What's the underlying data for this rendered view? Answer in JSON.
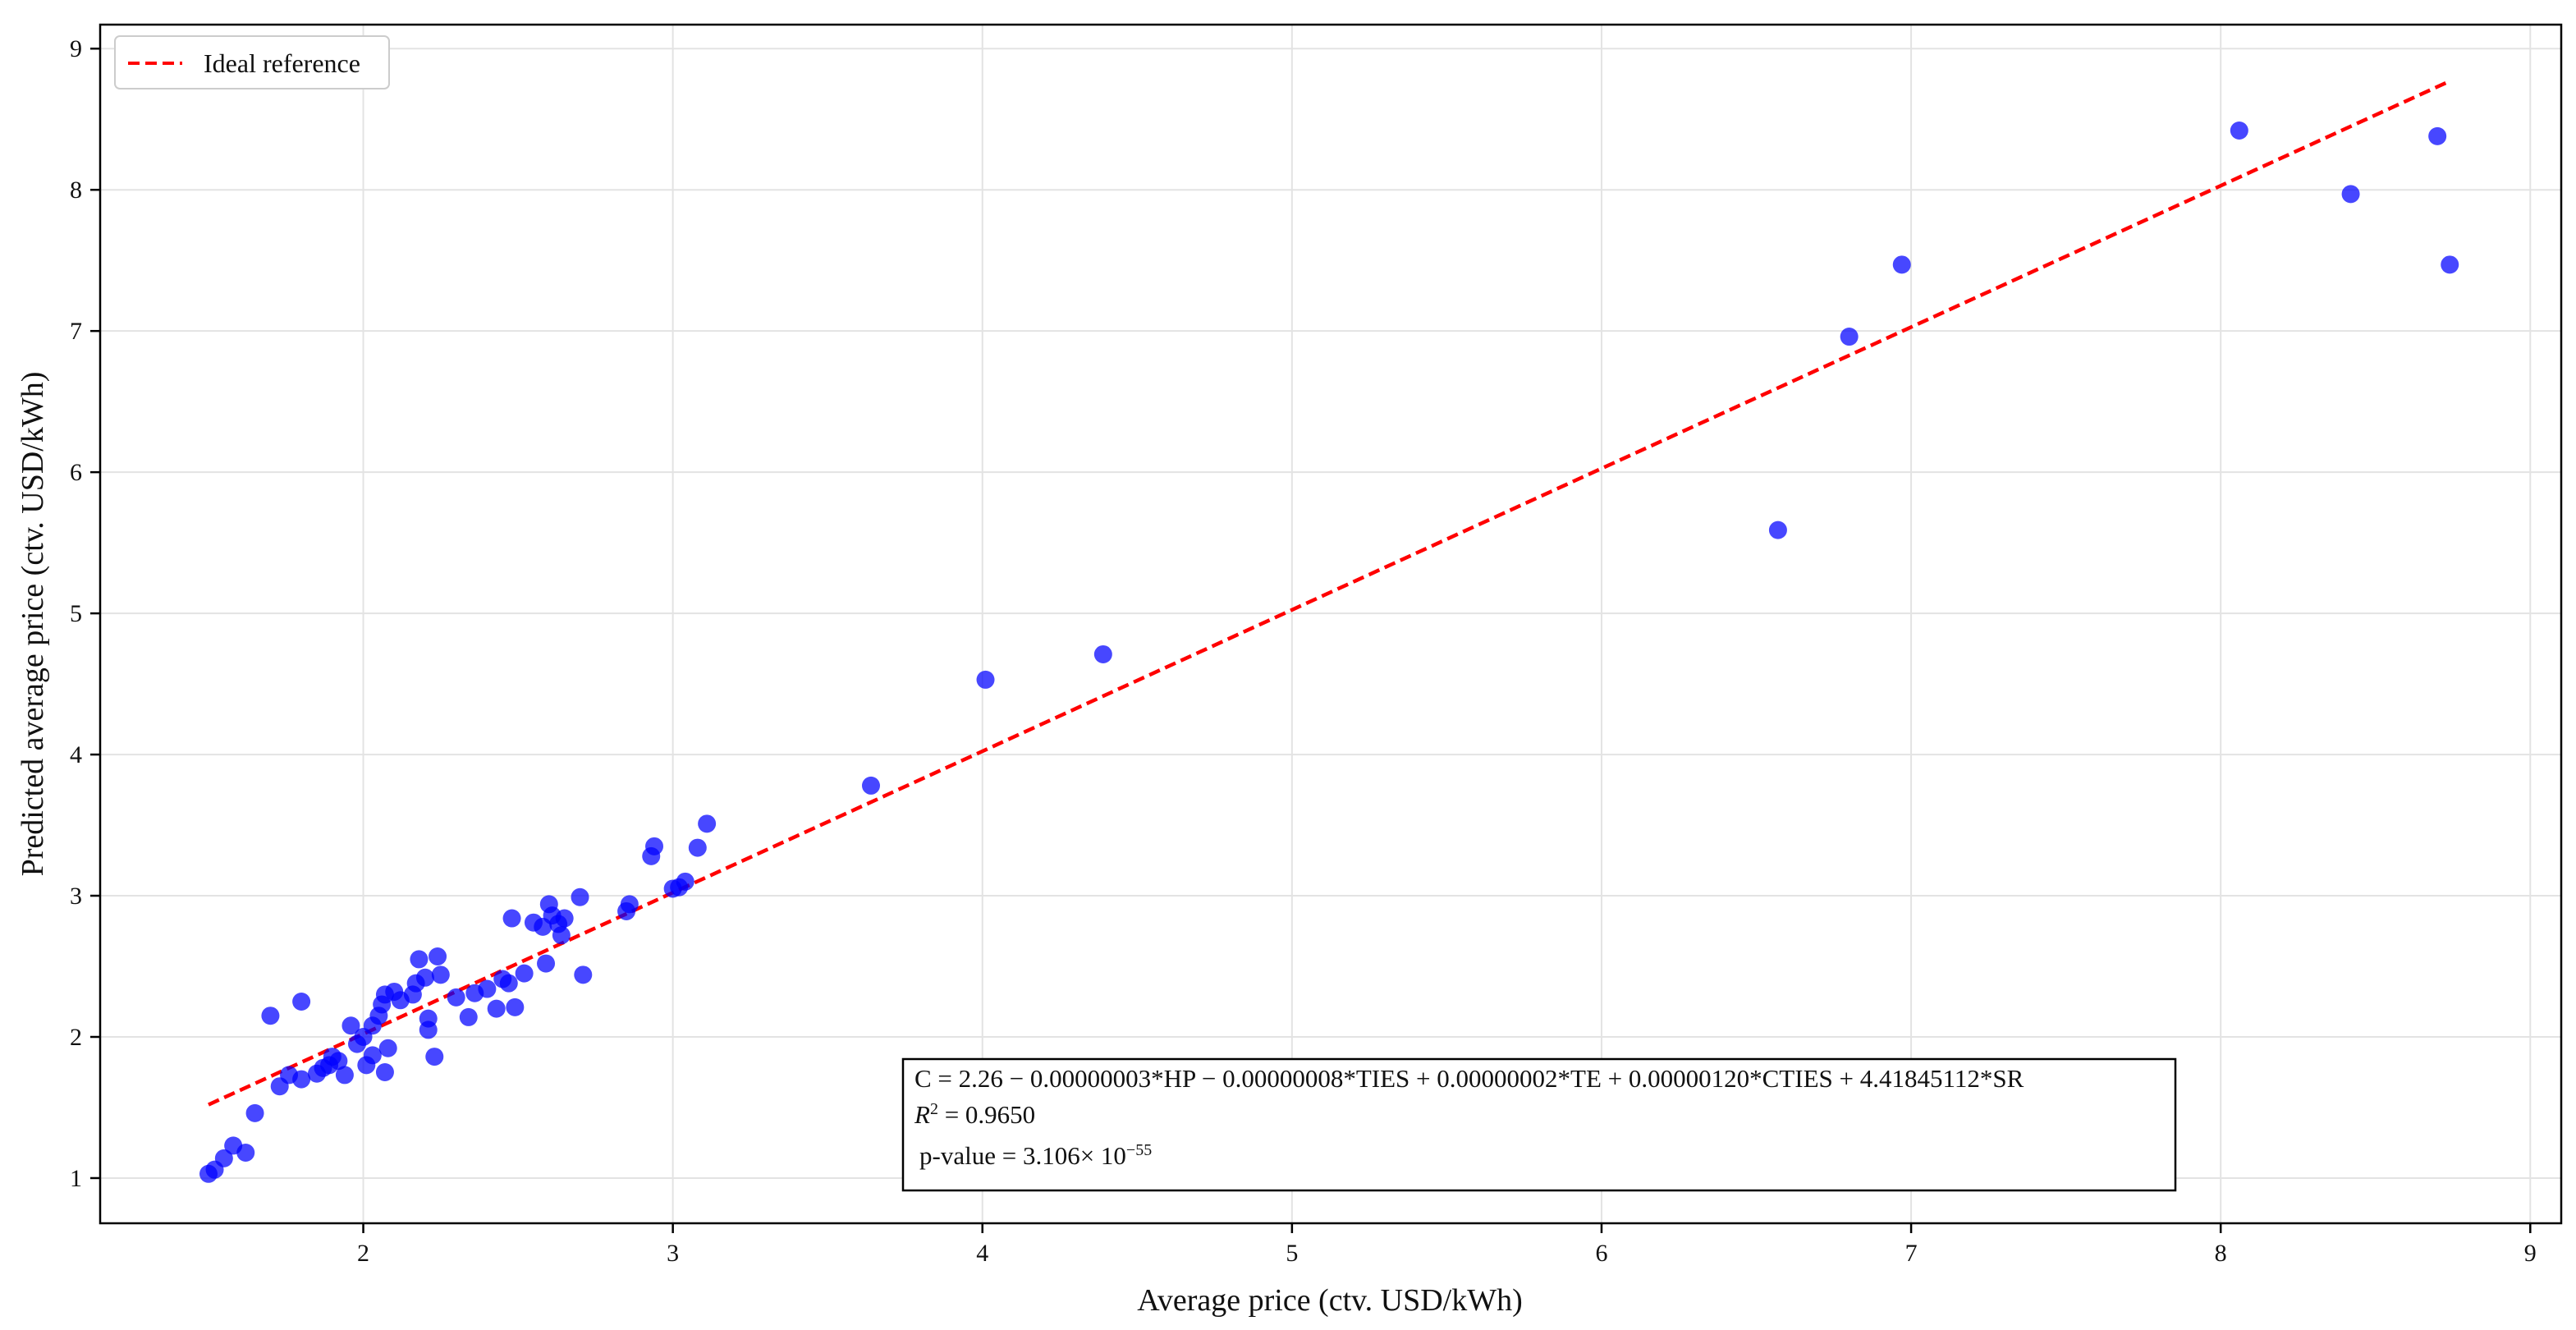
{
  "chart_data": {
    "type": "scatter",
    "title": "",
    "xlabel": "Average price (ctv. USD/kWh)",
    "ylabel": "Predicted average price (ctv. USD/kWh)",
    "xlim": [
      1.15,
      9.1
    ],
    "ylim": [
      0.68,
      9.17
    ],
    "xticks": [
      2,
      3,
      4,
      5,
      6,
      7,
      8,
      9
    ],
    "yticks": [
      1,
      2,
      3,
      4,
      5,
      6,
      7,
      8,
      9
    ],
    "grid": true,
    "legend_position": "top-left",
    "colors": {
      "points": "#0000ff",
      "reference": "#ff0000"
    },
    "reference_line": {
      "name": "Ideal reference",
      "x": [
        1.5,
        8.73
      ],
      "y": [
        1.52,
        8.76
      ]
    },
    "annotation": {
      "equation": "C = 2.26 − 0.00000003*HP − 0.00000008*TIES + 0.00000002*TE + 0.00000120*CTIES + 4.41845112*SR",
      "r2_label": "R",
      "r2_value": " = 0.9650",
      "p_label": "p-value = 3.106× 10",
      "p_exponent": "−55"
    },
    "points": [
      [
        1.5,
        1.03
      ],
      [
        1.52,
        1.06
      ],
      [
        1.55,
        1.14
      ],
      [
        1.58,
        1.23
      ],
      [
        1.62,
        1.18
      ],
      [
        1.65,
        1.46
      ],
      [
        1.7,
        2.15
      ],
      [
        1.73,
        1.65
      ],
      [
        1.76,
        1.73
      ],
      [
        1.8,
        2.25
      ],
      [
        1.8,
        1.7
      ],
      [
        1.85,
        1.74
      ],
      [
        1.87,
        1.78
      ],
      [
        1.89,
        1.8
      ],
      [
        1.9,
        1.86
      ],
      [
        1.92,
        1.83
      ],
      [
        1.94,
        1.73
      ],
      [
        1.96,
        2.08
      ],
      [
        1.98,
        1.95
      ],
      [
        2.0,
        2.0
      ],
      [
        2.01,
        1.8
      ],
      [
        2.03,
        1.87
      ],
      [
        2.03,
        2.08
      ],
      [
        2.05,
        2.15
      ],
      [
        2.06,
        2.23
      ],
      [
        2.07,
        2.3
      ],
      [
        2.07,
        1.75
      ],
      [
        2.08,
        1.92
      ],
      [
        2.1,
        2.32
      ],
      [
        2.12,
        2.26
      ],
      [
        2.16,
        2.3
      ],
      [
        2.17,
        2.38
      ],
      [
        2.18,
        2.55
      ],
      [
        2.2,
        2.42
      ],
      [
        2.21,
        2.13
      ],
      [
        2.21,
        2.05
      ],
      [
        2.23,
        1.86
      ],
      [
        2.24,
        2.57
      ],
      [
        2.25,
        2.44
      ],
      [
        2.3,
        2.28
      ],
      [
        2.34,
        2.14
      ],
      [
        2.36,
        2.31
      ],
      [
        2.4,
        2.34
      ],
      [
        2.43,
        2.2
      ],
      [
        2.45,
        2.41
      ],
      [
        2.47,
        2.38
      ],
      [
        2.48,
        2.84
      ],
      [
        2.49,
        2.21
      ],
      [
        2.52,
        2.45
      ],
      [
        2.55,
        2.81
      ],
      [
        2.58,
        2.78
      ],
      [
        2.59,
        2.52
      ],
      [
        2.6,
        2.94
      ],
      [
        2.61,
        2.86
      ],
      [
        2.63,
        2.8
      ],
      [
        2.64,
        2.72
      ],
      [
        2.65,
        2.84
      ],
      [
        2.7,
        2.99
      ],
      [
        2.71,
        2.44
      ],
      [
        2.85,
        2.89
      ],
      [
        2.86,
        2.94
      ],
      [
        2.93,
        3.28
      ],
      [
        2.94,
        3.35
      ],
      [
        3.0,
        3.05
      ],
      [
        3.02,
        3.06
      ],
      [
        3.04,
        3.1
      ],
      [
        3.08,
        3.34
      ],
      [
        3.11,
        3.51
      ],
      [
        3.64,
        3.78
      ],
      [
        4.01,
        4.53
      ],
      [
        4.39,
        4.71
      ],
      [
        6.57,
        5.59
      ],
      [
        6.8,
        6.96
      ],
      [
        6.97,
        7.47
      ],
      [
        8.06,
        8.42
      ],
      [
        8.42,
        7.97
      ],
      [
        8.7,
        8.38
      ],
      [
        8.74,
        7.47
      ]
    ]
  }
}
